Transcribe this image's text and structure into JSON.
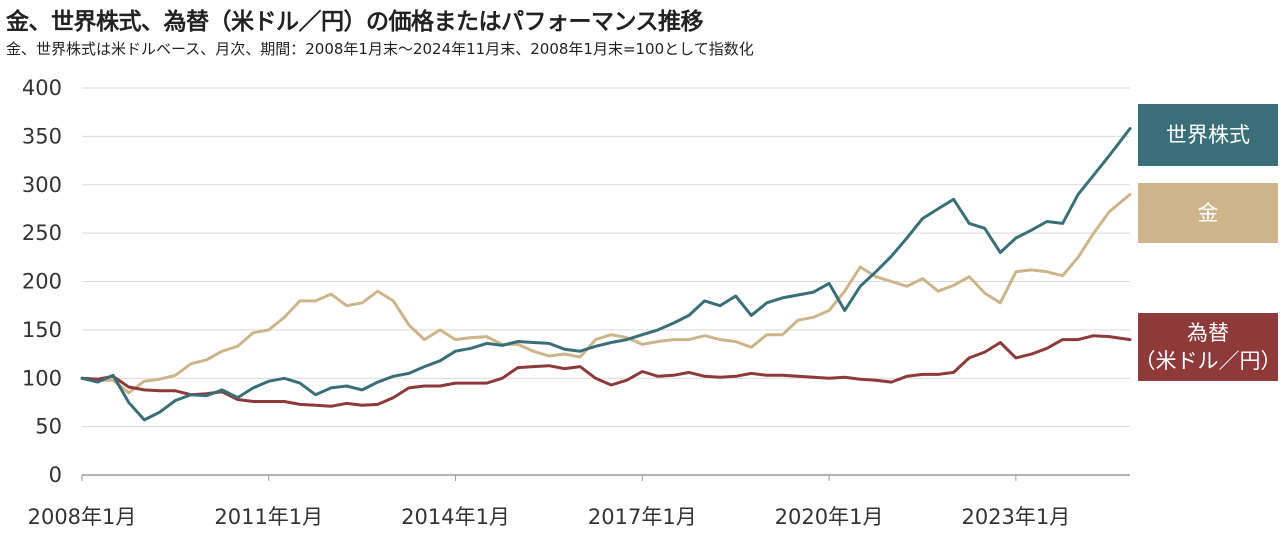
{
  "title": "金、世界株式、為替（米ドル／円）の価格またはパフォーマンス推移",
  "subtitle": "金、世界株式は米ドルベース、月次、期間：2008年1月末～2024年11月末、2008年1月末=100として指数化",
  "colors": {
    "world_equity": "#3a6f79",
    "gold": "#cdb48a",
    "fx": "#8e3a3a",
    "grid": "#d9d9d9",
    "axis": "#9a9a9a"
  },
  "legend": {
    "world_equity": "世界株式",
    "gold": "金",
    "fx_line1": "為替",
    "fx_line2": "（米ドル／円）"
  },
  "chart_data": {
    "type": "line",
    "title": "金、世界株式、為替（米ドル／円）の価格またはパフォーマンス推移",
    "ylim": [
      0,
      400
    ],
    "yticks": [
      "0",
      "50",
      "100",
      "150",
      "200",
      "250",
      "300",
      "350",
      "400"
    ],
    "xticks": [
      {
        "label": "2008年1月",
        "x": "2008-01"
      },
      {
        "label": "2011年1月",
        "x": "2011-01"
      },
      {
        "label": "2014年1月",
        "x": "2014-01"
      },
      {
        "label": "2017年1月",
        "x": "2017-01"
      },
      {
        "label": "2020年1月",
        "x": "2020-01"
      },
      {
        "label": "2023年1月",
        "x": "2023-01"
      }
    ],
    "x": [
      "2008-01",
      "2008-04",
      "2008-07",
      "2008-10",
      "2009-01",
      "2009-04",
      "2009-07",
      "2009-10",
      "2010-01",
      "2010-04",
      "2010-07",
      "2010-10",
      "2011-01",
      "2011-04",
      "2011-07",
      "2011-10",
      "2012-01",
      "2012-04",
      "2012-07",
      "2012-10",
      "2013-01",
      "2013-04",
      "2013-07",
      "2013-10",
      "2014-01",
      "2014-04",
      "2014-07",
      "2014-10",
      "2015-01",
      "2015-04",
      "2015-07",
      "2015-10",
      "2016-01",
      "2016-04",
      "2016-07",
      "2016-10",
      "2017-01",
      "2017-04",
      "2017-07",
      "2017-10",
      "2018-01",
      "2018-04",
      "2018-07",
      "2018-10",
      "2019-01",
      "2019-04",
      "2019-07",
      "2019-10",
      "2020-01",
      "2020-04",
      "2020-07",
      "2020-10",
      "2021-01",
      "2021-04",
      "2021-07",
      "2021-10",
      "2022-01",
      "2022-04",
      "2022-07",
      "2022-10",
      "2023-01",
      "2023-04",
      "2023-07",
      "2023-10",
      "2024-01",
      "2024-04",
      "2024-07",
      "2024-11"
    ],
    "series": [
      {
        "name": "世界株式",
        "color": "#3a6f79",
        "values": [
          100,
          96,
          103,
          75,
          57,
          65,
          77,
          83,
          82,
          88,
          80,
          90,
          97,
          100,
          95,
          83,
          90,
          92,
          88,
          96,
          102,
          105,
          112,
          118,
          128,
          131,
          136,
          134,
          138,
          137,
          136,
          130,
          128,
          133,
          137,
          140,
          145,
          150,
          157,
          165,
          180,
          175,
          185,
          165,
          178,
          183,
          186,
          189,
          198,
          170,
          195,
          210,
          226,
          245,
          265,
          275,
          285,
          260,
          255,
          230,
          245,
          253,
          262,
          260,
          290,
          310,
          330,
          358
        ]
      },
      {
        "name": "金",
        "color": "#cdb48a",
        "values": [
          100,
          98,
          98,
          85,
          97,
          99,
          103,
          115,
          119,
          128,
          133,
          147,
          150,
          163,
          180,
          180,
          187,
          175,
          178,
          190,
          180,
          155,
          140,
          150,
          140,
          142,
          143,
          135,
          135,
          128,
          123,
          125,
          122,
          140,
          145,
          142,
          135,
          138,
          140,
          140,
          144,
          140,
          138,
          132,
          145,
          145,
          160,
          163,
          170,
          190,
          215,
          205,
          200,
          195,
          203,
          190,
          196,
          205,
          188,
          178,
          210,
          212,
          210,
          206,
          225,
          250,
          272,
          290
        ]
      },
      {
        "name": "為替（米ドル／円）",
        "color": "#8e3a3a",
        "values": [
          100,
          99,
          102,
          91,
          88,
          87,
          87,
          83,
          84,
          86,
          78,
          76,
          76,
          76,
          73,
          72,
          71,
          74,
          72,
          73,
          80,
          90,
          92,
          92,
          95,
          95,
          95,
          100,
          111,
          112,
          113,
          110,
          112,
          100,
          93,
          98,
          107,
          102,
          103,
          106,
          102,
          101,
          102,
          105,
          103,
          103,
          102,
          101,
          100,
          101,
          99,
          98,
          96,
          102,
          104,
          104,
          106,
          121,
          127,
          137,
          121,
          125,
          131,
          140,
          140,
          144,
          143,
          140
        ]
      }
    ]
  }
}
